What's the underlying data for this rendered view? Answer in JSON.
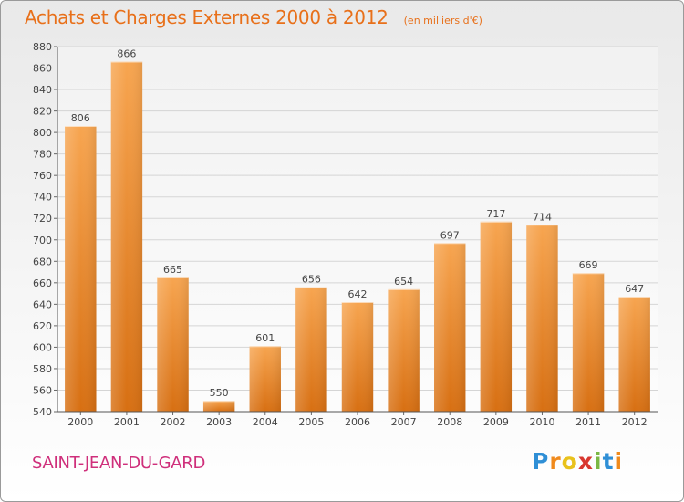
{
  "header": {
    "title": "Achats et Charges Externes 2000 à 2012",
    "unit": "(en milliers d'€)"
  },
  "footer": {
    "commune": "SAINT-JEAN-DU-GARD",
    "logo": "Proxiti"
  },
  "colors": {
    "bar_light": "#f7a550",
    "bar_dark": "#d76f12",
    "title": "#e8701a",
    "commune": "#cf2f7b",
    "grid": "#d5d5d5"
  },
  "chart_data": {
    "type": "bar",
    "categories": [
      "2000",
      "2001",
      "2002",
      "2003",
      "2004",
      "2005",
      "2006",
      "2007",
      "2008",
      "2009",
      "2010",
      "2011",
      "2012"
    ],
    "values": [
      806,
      866,
      665,
      550,
      601,
      656,
      642,
      654,
      697,
      717,
      714,
      669,
      647
    ],
    "title": "Achats et Charges Externes 2000 à 2012",
    "unit": "(en milliers d'€)",
    "ylim": [
      540,
      880
    ],
    "yticks": [
      540,
      560,
      580,
      600,
      620,
      640,
      660,
      680,
      700,
      720,
      740,
      760,
      780,
      800,
      820,
      840,
      860,
      880
    ],
    "grid": true,
    "data_labels": true
  }
}
